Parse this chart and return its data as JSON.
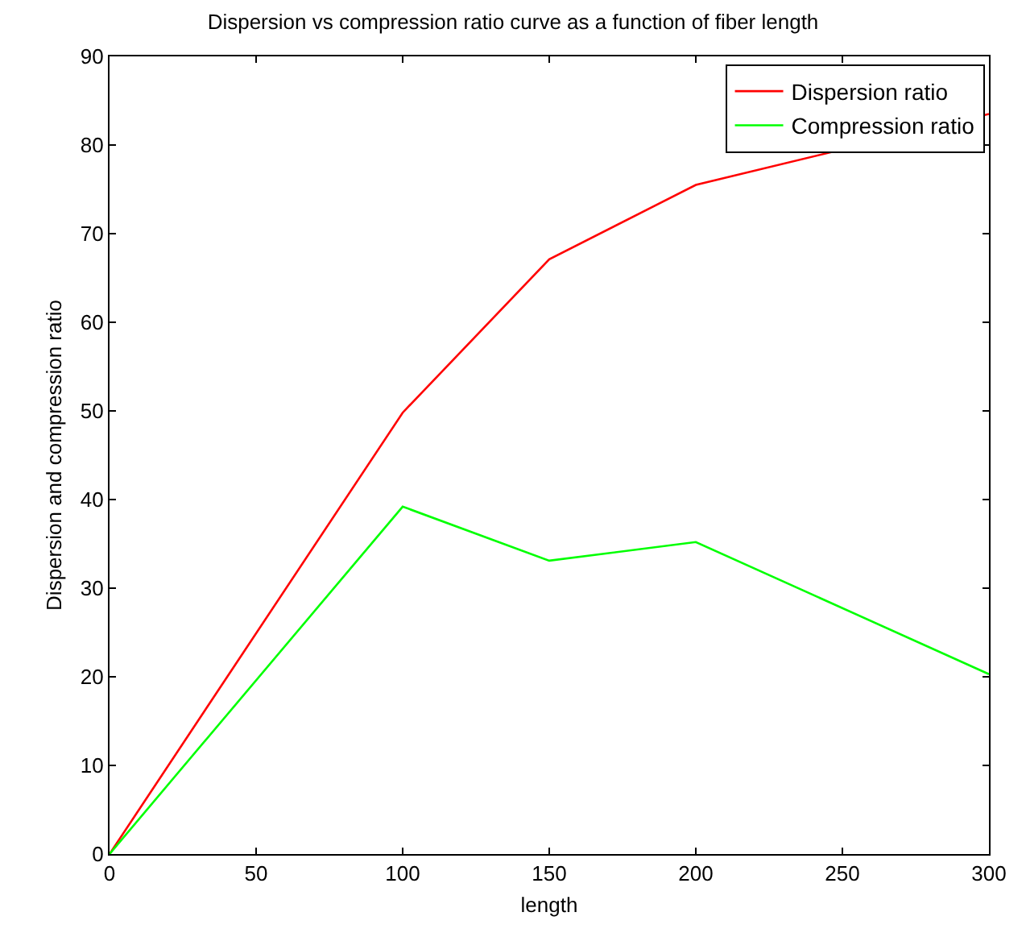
{
  "chart_data": {
    "type": "line",
    "title": "Dispersion vs compression ratio curve as a function of fiber length",
    "xlabel": "length",
    "ylabel": "Dispersion and compression ratio",
    "x": [
      0,
      100,
      150,
      200,
      300
    ],
    "series": [
      {
        "name": "Dispersion ratio",
        "color": "#ff0000",
        "values": [
          0,
          49.8,
          67.1,
          75.5,
          83.5
        ]
      },
      {
        "name": "Compression ratio",
        "color": "#00ff00",
        "values": [
          0,
          39.2,
          33.1,
          35.2,
          20.3
        ]
      }
    ],
    "xlim": [
      0,
      300
    ],
    "xticks": [
      0,
      50,
      100,
      150,
      200,
      250,
      300
    ],
    "ylim": [
      0,
      90
    ],
    "yticks": [
      0,
      10,
      20,
      30,
      40,
      50,
      60,
      70,
      80,
      90
    ],
    "grid": false,
    "legend": "top right",
    "marker": "none",
    "line_style": "solid"
  }
}
